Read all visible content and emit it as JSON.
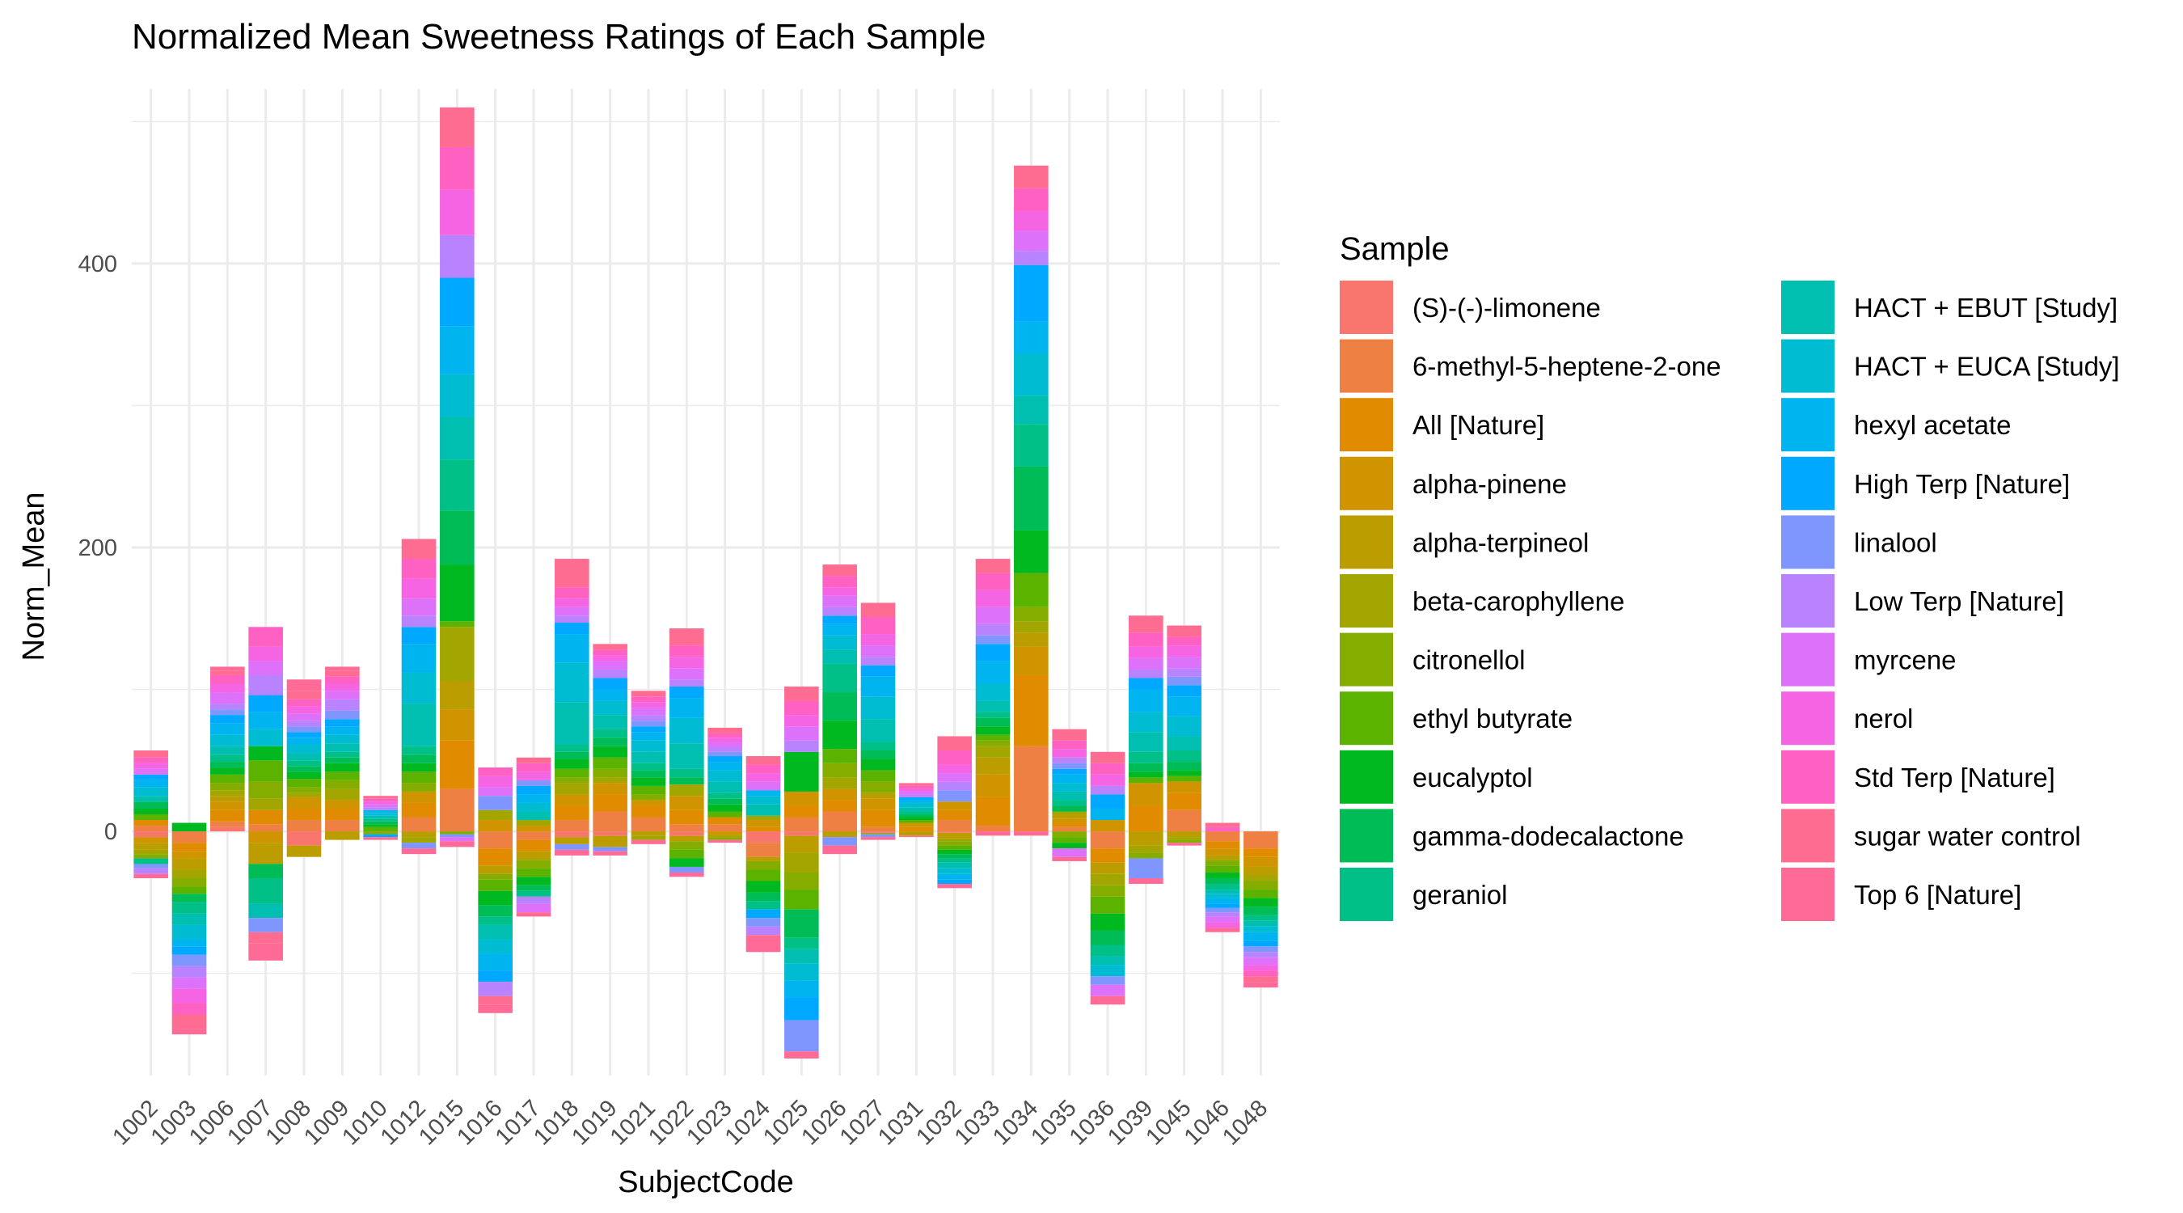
{
  "chart_data": {
    "type": "bar",
    "stacked": true,
    "title": "Normalized Mean Sweetness Ratings of Each Sample",
    "xlabel": "SubjectCode",
    "ylabel": "Norm_Mean",
    "ylim": [
      -172,
      523
    ],
    "yticks": [
      0,
      200,
      400
    ],
    "grid": true,
    "legend_title": "Sample",
    "legend_position": "right",
    "categories": [
      "1002",
      "1003",
      "1006",
      "1007",
      "1008",
      "1009",
      "1010",
      "1012",
      "1015",
      "1016",
      "1017",
      "1018",
      "1019",
      "1021",
      "1022",
      "1023",
      "1024",
      "1025",
      "1026",
      "1027",
      "1031",
      "1032",
      "1033",
      "1034",
      "1035",
      "1036",
      "1039",
      "1045",
      "1046",
      "1048"
    ],
    "series": [
      {
        "name": "(S)-(-)-limonene",
        "color": "#F8766D",
        "values": [
          -4,
          0,
          3,
          0,
          -10,
          0,
          0,
          0,
          0,
          0,
          0,
          -4,
          -3,
          0,
          -3,
          0,
          -8,
          -3,
          0,
          -1,
          0,
          -1,
          0,
          0,
          0,
          0,
          0,
          0,
          0,
          0
        ]
      },
      {
        "name": "6-methyl-5-heptene-2-one",
        "color": "#EE8043",
        "values": [
          4,
          -8,
          4,
          5,
          8,
          8,
          0,
          10,
          30,
          -12,
          -6,
          8,
          14,
          10,
          5,
          5,
          -10,
          10,
          14,
          3,
          0,
          8,
          4,
          60,
          3,
          -12,
          0,
          15,
          -7,
          -12
        ]
      },
      {
        "name": "All [Nature]",
        "color": "#E08B00",
        "values": [
          4,
          -6,
          8,
          10,
          8,
          8,
          0,
          10,
          34,
          -12,
          -8,
          10,
          12,
          8,
          10,
          5,
          3,
          8,
          8,
          12,
          3,
          7,
          20,
          50,
          3,
          -10,
          18,
          12,
          -5,
          -6
        ]
      },
      {
        "name": "alpha-pinene",
        "color": "#CF9400",
        "values": [
          -4,
          -5,
          6,
          -8,
          8,
          6,
          0,
          8,
          22,
          8,
          4,
          8,
          8,
          4,
          10,
          -2,
          5,
          10,
          8,
          8,
          3,
          6,
          16,
          20,
          3,
          8,
          16,
          8,
          -5,
          -7
        ]
      },
      {
        "name": "alpha-terpineol",
        "color": "#BB9D00",
        "values": [
          -5,
          -8,
          4,
          -15,
          -8,
          -6,
          0,
          -4,
          20,
          -6,
          -6,
          -5,
          -8,
          -3,
          -4,
          -2,
          -3,
          -12,
          -4,
          4,
          -3,
          -4,
          12,
          10,
          3,
          -8,
          -10,
          -4,
          -3,
          -6
        ]
      },
      {
        "name": "beta-carophyllene",
        "color": "#A3A500",
        "values": [
          -3,
          -6,
          4,
          8,
          3,
          8,
          0,
          -4,
          38,
          7,
          4,
          8,
          4,
          -3,
          8,
          0,
          3,
          -14,
          8,
          -1,
          0,
          -2,
          8,
          8,
          2,
          -8,
          -5,
          -2,
          0,
          -4
        ]
      },
      {
        "name": "citronellol",
        "color": "#85AD00",
        "values": [
          -3,
          -6,
          5,
          12,
          4,
          6,
          -2,
          6,
          -2,
          -4,
          -6,
          4,
          6,
          4,
          -6,
          -2,
          -6,
          -12,
          10,
          8,
          0,
          -3,
          4,
          10,
          -4,
          -8,
          -4,
          -2,
          -4,
          -6
        ]
      },
      {
        "name": "ethyl butyrate",
        "color": "#5BB300",
        "values": [
          4,
          -5,
          6,
          15,
          6,
          6,
          3,
          8,
          4,
          -8,
          -6,
          6,
          8,
          6,
          -6,
          4,
          -8,
          -14,
          10,
          8,
          2,
          -3,
          4,
          24,
          -4,
          -12,
          4,
          4,
          -5,
          -6
        ]
      },
      {
        "name": "eucalyptol",
        "color": "#00B81F",
        "values": [
          4,
          6,
          5,
          10,
          5,
          6,
          2,
          6,
          40,
          -10,
          -6,
          7,
          8,
          6,
          -6,
          5,
          -8,
          28,
          20,
          8,
          2,
          -3,
          6,
          30,
          -4,
          -12,
          4,
          4,
          -4,
          -6
        ]
      },
      {
        "name": "gamma-dodecalactone",
        "color": "#00BC56",
        "values": [
          5,
          -6,
          4,
          -10,
          4,
          4,
          2,
          6,
          38,
          -8,
          -4,
          5,
          6,
          5,
          5,
          4,
          -6,
          -20,
          20,
          6,
          2,
          -3,
          6,
          45,
          4,
          -10,
          6,
          6,
          -4,
          -6
        ]
      },
      {
        "name": "geraniol",
        "color": "#00C087",
        "values": [
          -4,
          -8,
          5,
          -18,
          4,
          4,
          2,
          6,
          36,
          -6,
          -4,
          5,
          6,
          5,
          6,
          4,
          -6,
          -8,
          20,
          6,
          2,
          -3,
          4,
          30,
          4,
          -8,
          8,
          8,
          -4,
          -4
        ]
      },
      {
        "name": "HACT + EBUT [Study]",
        "color": "#00BFB0",
        "values": [
          4,
          -8,
          6,
          -10,
          5,
          6,
          2,
          30,
          30,
          -10,
          6,
          30,
          10,
          8,
          18,
          8,
          8,
          -10,
          10,
          16,
          3,
          -4,
          8,
          20,
          6,
          -6,
          14,
          10,
          -3,
          -4
        ]
      },
      {
        "name": "HACT + EUCA [Study]",
        "color": "#00BCD3",
        "values": [
          6,
          -10,
          8,
          12,
          6,
          6,
          2,
          22,
          30,
          -10,
          6,
          28,
          10,
          8,
          18,
          8,
          6,
          -12,
          10,
          16,
          3,
          -4,
          12,
          30,
          6,
          -8,
          14,
          14,
          -3,
          -4
        ]
      },
      {
        "name": "hexyl acetate",
        "color": "#00B4EF",
        "values": [
          5,
          -5,
          8,
          12,
          5,
          6,
          2,
          20,
          34,
          -12,
          6,
          20,
          8,
          6,
          14,
          6,
          4,
          -12,
          8,
          14,
          2,
          -4,
          16,
          22,
          6,
          8,
          16,
          14,
          -4,
          -6
        ]
      },
      {
        "name": "High Terp [Nature]",
        "color": "#00A9FF",
        "values": [
          4,
          -6,
          6,
          12,
          4,
          5,
          -2,
          12,
          34,
          -8,
          6,
          8,
          8,
          4,
          8,
          4,
          -6,
          -16,
          6,
          8,
          2,
          -3,
          12,
          40,
          4,
          10,
          8,
          8,
          -3,
          -4
        ]
      },
      {
        "name": "linalool",
        "color": "#7F96FF",
        "values": [
          -3,
          -8,
          4,
          -10,
          4,
          6,
          0,
          -4,
          -2,
          10,
          4,
          -4,
          -3,
          4,
          -4,
          3,
          -6,
          -22,
          -6,
          -2,
          0,
          8,
          6,
          0,
          4,
          -6,
          -14,
          6,
          -3,
          -4
        ]
      },
      {
        "name": "Low Terp [Nature]",
        "color": "#B983FF",
        "values": [
          -4,
          -8,
          4,
          14,
          4,
          8,
          2,
          8,
          30,
          -10,
          -5,
          5,
          6,
          4,
          5,
          3,
          -6,
          8,
          6,
          6,
          2,
          6,
          8,
          10,
          4,
          6,
          6,
          6,
          -3,
          -4
        ]
      },
      {
        "name": "myrcene",
        "color": "#DE71F9",
        "values": [
          4,
          -8,
          8,
          10,
          5,
          6,
          2,
          12,
          -3,
          6,
          -6,
          6,
          6,
          5,
          8,
          4,
          6,
          10,
          8,
          8,
          2,
          6,
          12,
          14,
          -6,
          -8,
          8,
          8,
          -4,
          -5
        ]
      },
      {
        "name": "nerol",
        "color": "#F564E3",
        "values": [
          4,
          -10,
          6,
          10,
          5,
          5,
          2,
          14,
          32,
          8,
          6,
          6,
          4,
          4,
          8,
          3,
          6,
          8,
          6,
          8,
          2,
          6,
          12,
          14,
          6,
          8,
          8,
          8,
          -4,
          -4
        ]
      },
      {
        "name": "Std Terp [Nature]",
        "color": "#FF61C3",
        "values": [
          4,
          -8,
          6,
          14,
          5,
          5,
          2,
          14,
          30,
          6,
          6,
          8,
          4,
          4,
          8,
          3,
          6,
          10,
          8,
          12,
          2,
          10,
          12,
          16,
          6,
          8,
          10,
          6,
          3,
          -4
        ]
      },
      {
        "name": "sugar water control",
        "color": "#FF6C91",
        "values": [
          5,
          -10,
          3,
          -8,
          6,
          4,
          2,
          14,
          28,
          -6,
          4,
          20,
          4,
          4,
          12,
          4,
          6,
          10,
          8,
          10,
          2,
          10,
          10,
          16,
          8,
          8,
          12,
          8,
          3,
          -4
        ]
      },
      {
        "name": "Top 6 [Nature]",
        "color": "#FF6B96",
        "values": [
          -3,
          -4,
          3,
          -12,
          8,
          3,
          -2,
          -4,
          -4,
          -6,
          -3,
          -4,
          -3,
          -3,
          -3,
          -2,
          -12,
          -5,
          -6,
          -2,
          -1,
          -3,
          -3,
          -3,
          -3,
          -6,
          -4,
          -2,
          -3,
          -4
        ]
      }
    ]
  }
}
